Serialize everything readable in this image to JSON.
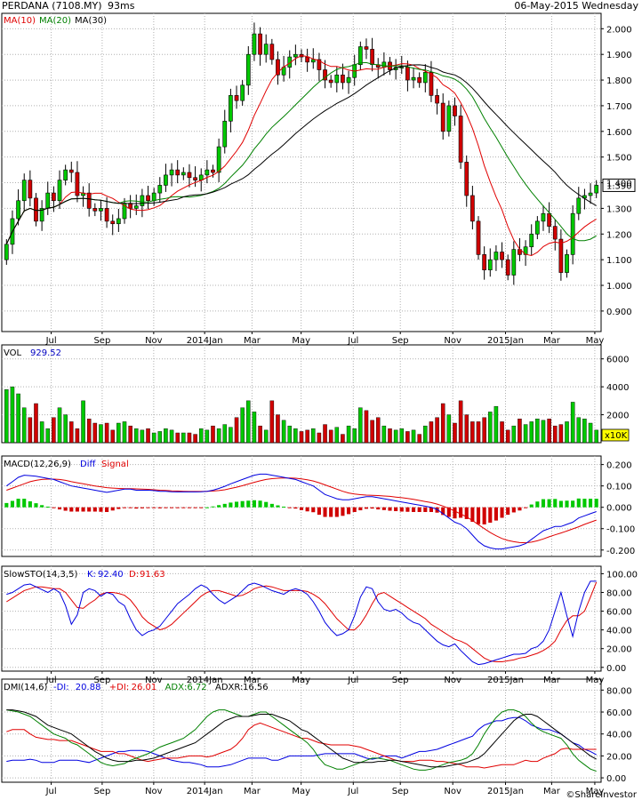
{
  "header": {
    "title": "PERDANA (7108.MY)",
    "latency": "93ms",
    "date": "06-May-2015 Wednesday"
  },
  "footer": {
    "copyright": "©ShareInvestor"
  },
  "colors": {
    "up": "#00c800",
    "down": "#d00000",
    "ma10": "#e00000",
    "ma20": "#008000",
    "ma30": "#000000",
    "diff": "#0000e0",
    "signal": "#e00000"
  },
  "chart_data": [
    {
      "type": "candlestick",
      "panel": "price",
      "legend": [
        {
          "name": "MA(10)",
          "color": "#e00000"
        },
        {
          "name": "MA(20)",
          "color": "#008000"
        },
        {
          "name": "MA(30)",
          "color": "#000000"
        }
      ],
      "current_value": "1.390",
      "ylim": [
        0.82,
        2.06
      ],
      "y_ticks": [
        "2.000",
        "1.900",
        "1.800",
        "1.700",
        "1.600",
        "1.500",
        "1.400",
        "1.300",
        "1.200",
        "1.100",
        "1.000",
        "0.900"
      ],
      "x_ticks": [
        "Jul",
        "Sep",
        "Nov",
        "2014Jan",
        "Mar",
        "May",
        "Jul",
        "Sep",
        "Nov",
        "2015Jan",
        "Mar",
        "May"
      ],
      "closes": [
        1.16,
        1.26,
        1.33,
        1.41,
        1.34,
        1.25,
        1.3,
        1.36,
        1.33,
        1.41,
        1.45,
        1.44,
        1.35,
        1.36,
        1.3,
        1.29,
        1.3,
        1.25,
        1.24,
        1.26,
        1.32,
        1.3,
        1.31,
        1.35,
        1.33,
        1.36,
        1.39,
        1.43,
        1.45,
        1.43,
        1.44,
        1.42,
        1.41,
        1.43,
        1.45,
        1.44,
        1.54,
        1.64,
        1.74,
        1.72,
        1.78,
        1.9,
        1.98,
        1.9,
        1.94,
        1.88,
        1.82,
        1.85,
        1.89,
        1.9,
        1.89,
        1.87,
        1.88,
        1.84,
        1.8,
        1.79,
        1.82,
        1.79,
        1.81,
        1.86,
        1.93,
        1.92,
        1.86,
        1.85,
        1.87,
        1.84,
        1.85,
        1.85,
        1.8,
        1.81,
        1.79,
        1.83,
        1.74,
        1.71,
        1.6,
        1.7,
        1.66,
        1.48,
        1.35,
        1.25,
        1.12,
        1.06,
        1.1,
        1.13,
        1.1,
        1.04,
        1.14,
        1.12,
        1.15,
        1.2,
        1.25,
        1.28,
        1.23,
        1.18,
        1.05,
        1.12,
        1.28,
        1.34,
        1.35,
        1.36,
        1.39
      ],
      "opens": [
        1.1,
        1.16,
        1.26,
        1.33,
        1.41,
        1.34,
        1.25,
        1.3,
        1.36,
        1.33,
        1.41,
        1.45,
        1.44,
        1.35,
        1.36,
        1.3,
        1.29,
        1.3,
        1.25,
        1.24,
        1.26,
        1.32,
        1.3,
        1.31,
        1.35,
        1.33,
        1.36,
        1.39,
        1.43,
        1.45,
        1.43,
        1.44,
        1.42,
        1.41,
        1.43,
        1.45,
        1.44,
        1.54,
        1.64,
        1.74,
        1.72,
        1.78,
        1.9,
        1.98,
        1.9,
        1.94,
        1.88,
        1.82,
        1.85,
        1.89,
        1.9,
        1.89,
        1.87,
        1.88,
        1.84,
        1.8,
        1.79,
        1.82,
        1.79,
        1.81,
        1.86,
        1.93,
        1.92,
        1.86,
        1.85,
        1.87,
        1.84,
        1.85,
        1.85,
        1.8,
        1.81,
        1.79,
        1.83,
        1.74,
        1.71,
        1.6,
        1.7,
        1.66,
        1.48,
        1.35,
        1.25,
        1.12,
        1.06,
        1.1,
        1.13,
        1.1,
        1.04,
        1.14,
        1.12,
        1.15,
        1.2,
        1.25,
        1.28,
        1.23,
        1.18,
        1.05,
        1.12,
        1.28,
        1.34,
        1.35,
        1.36
      ]
    },
    {
      "type": "bar",
      "panel": "volume",
      "label": "VOL",
      "value": "929.52",
      "ylim": [
        0,
        7000
      ],
      "y_ticks": [
        "6000",
        "4000",
        "2000"
      ],
      "unit_label": "x10K",
      "values": [
        3800,
        4000,
        3500,
        2500,
        1800,
        2800,
        1500,
        1000,
        1800,
        2500,
        2000,
        1500,
        1000,
        3000,
        1700,
        1400,
        1300,
        1400,
        900,
        1400,
        1500,
        1200,
        1000,
        900,
        1000,
        700,
        800,
        1000,
        900,
        700,
        700,
        700,
        600,
        1000,
        900,
        1200,
        1000,
        1300,
        1100,
        1800,
        2500,
        3000,
        2200,
        1200,
        900,
        3000,
        2000,
        1600,
        1200,
        1000,
        800,
        900,
        1000,
        700,
        1300,
        900,
        1100,
        600,
        1200,
        1000,
        2500,
        2300,
        1600,
        1800,
        1200,
        1000,
        900,
        1000,
        800,
        900,
        600,
        1200,
        1500,
        1800,
        2800,
        2000,
        1400,
        3000,
        2000,
        1500,
        1500,
        1800,
        2200,
        2600,
        1500,
        900,
        1200,
        1700,
        1300,
        1500,
        1700,
        1600,
        1700,
        1200,
        1300,
        1500,
        2900,
        1800,
        1700,
        1400,
        900
      ]
    },
    {
      "type": "bar_line",
      "panel": "macd",
      "label": "MACD(12,26,9)",
      "legend": [
        {
          "name": "Diff",
          "color": "#0000e0"
        },
        {
          "name": "Signal",
          "color": "#e00000"
        }
      ],
      "ylim": [
        -0.23,
        0.24
      ],
      "y_ticks": [
        "0.200",
        "0.100",
        "0.000",
        "-0.100",
        "-0.200"
      ],
      "diff": [
        0.1,
        0.12,
        0.14,
        0.15,
        0.148,
        0.145,
        0.14,
        0.135,
        0.13,
        0.12,
        0.11,
        0.1,
        0.095,
        0.09,
        0.085,
        0.08,
        0.075,
        0.07,
        0.075,
        0.08,
        0.085,
        0.085,
        0.08,
        0.08,
        0.08,
        0.078,
        0.075,
        0.075,
        0.073,
        0.072,
        0.072,
        0.072,
        0.072,
        0.073,
        0.075,
        0.08,
        0.088,
        0.098,
        0.11,
        0.12,
        0.13,
        0.14,
        0.15,
        0.155,
        0.155,
        0.15,
        0.145,
        0.14,
        0.135,
        0.13,
        0.12,
        0.11,
        0.1,
        0.08,
        0.06,
        0.05,
        0.04,
        0.035,
        0.035,
        0.04,
        0.045,
        0.05,
        0.05,
        0.045,
        0.04,
        0.035,
        0.03,
        0.025,
        0.02,
        0.015,
        0.01,
        0.005,
        0.0,
        -0.01,
        -0.03,
        -0.05,
        -0.07,
        -0.08,
        -0.1,
        -0.13,
        -0.16,
        -0.18,
        -0.19,
        -0.195,
        -0.195,
        -0.19,
        -0.185,
        -0.18,
        -0.17,
        -0.15,
        -0.13,
        -0.11,
        -0.1,
        -0.09,
        -0.09,
        -0.08,
        -0.07,
        -0.05,
        -0.04,
        -0.03,
        -0.02
      ],
      "signal": [
        0.08,
        0.09,
        0.1,
        0.11,
        0.12,
        0.126,
        0.13,
        0.132,
        0.132,
        0.13,
        0.126,
        0.12,
        0.115,
        0.11,
        0.105,
        0.1,
        0.096,
        0.092,
        0.09,
        0.088,
        0.087,
        0.087,
        0.086,
        0.085,
        0.084,
        0.082,
        0.08,
        0.079,
        0.077,
        0.076,
        0.075,
        0.074,
        0.074,
        0.074,
        0.075,
        0.076,
        0.078,
        0.082,
        0.088,
        0.094,
        0.101,
        0.109,
        0.117,
        0.124,
        0.13,
        0.134,
        0.136,
        0.137,
        0.137,
        0.136,
        0.133,
        0.129,
        0.123,
        0.115,
        0.105,
        0.095,
        0.085,
        0.075,
        0.067,
        0.062,
        0.059,
        0.057,
        0.056,
        0.055,
        0.053,
        0.051,
        0.048,
        0.045,
        0.041,
        0.037,
        0.032,
        0.027,
        0.022,
        0.015,
        0.006,
        -0.005,
        -0.018,
        -0.031,
        -0.045,
        -0.062,
        -0.081,
        -0.1,
        -0.118,
        -0.133,
        -0.146,
        -0.155,
        -0.161,
        -0.165,
        -0.166,
        -0.163,
        -0.157,
        -0.148,
        -0.138,
        -0.129,
        -0.12,
        -0.111,
        -0.101,
        -0.091,
        -0.08,
        -0.07,
        -0.06
      ]
    },
    {
      "type": "line",
      "panel": "stochastic",
      "label": "SlowSTO(14,3,5)",
      "legend": [
        {
          "name": "K:",
          "value": "92.40",
          "color": "#0000e0"
        },
        {
          "name": "D:",
          "value": "91.63",
          "color": "#e00000"
        }
      ],
      "ylim": [
        -4,
        108
      ],
      "y_ticks": [
        "100.00",
        "80.00",
        "60.00",
        "40.00",
        "20.00",
        "0.00"
      ],
      "k": [
        78,
        80,
        84,
        88,
        89,
        86,
        83,
        80,
        84,
        80,
        66,
        46,
        56,
        80,
        84,
        82,
        76,
        80,
        78,
        70,
        66,
        52,
        40,
        34,
        38,
        40,
        44,
        52,
        60,
        68,
        73,
        78,
        84,
        88,
        85,
        78,
        72,
        68,
        72,
        76,
        82,
        88,
        90,
        88,
        85,
        82,
        80,
        78,
        82,
        84,
        82,
        78,
        70,
        60,
        48,
        40,
        34,
        36,
        40,
        55,
        75,
        86,
        84,
        70,
        62,
        60,
        62,
        58,
        52,
        48,
        46,
        40,
        34,
        28,
        24,
        22,
        25,
        18,
        12,
        6,
        3,
        4,
        6,
        8,
        10,
        12,
        14,
        14,
        15,
        20,
        22,
        28,
        40,
        60,
        80,
        55,
        33,
        60,
        80,
        92,
        92
      ],
      "d": [
        70,
        74,
        78,
        82,
        84,
        86,
        86,
        85,
        84,
        84,
        80,
        72,
        64,
        63,
        68,
        72,
        78,
        80,
        80,
        79,
        77,
        72,
        64,
        54,
        48,
        44,
        40,
        42,
        46,
        52,
        58,
        64,
        70,
        76,
        80,
        82,
        82,
        80,
        78,
        76,
        77,
        80,
        84,
        86,
        87,
        86,
        84,
        82,
        82,
        82,
        82,
        81,
        78,
        74,
        68,
        60,
        52,
        46,
        40,
        40,
        46,
        56,
        68,
        78,
        80,
        76,
        72,
        68,
        64,
        60,
        56,
        52,
        46,
        42,
        38,
        34,
        30,
        28,
        25,
        20,
        15,
        10,
        7,
        6,
        6,
        7,
        8,
        10,
        11,
        13,
        15,
        18,
        22,
        28,
        40,
        50,
        55,
        55,
        60,
        75,
        91
      ]
    },
    {
      "type": "line",
      "panel": "dmi",
      "label": "DMI(14,6)",
      "legend": [
        {
          "name": "-DI:",
          "value": "20.88",
          "color": "#0000e0"
        },
        {
          "name": "+DI:",
          "value": "26.01",
          "color": "#e00000"
        },
        {
          "name": "ADX:",
          "value": "6.72",
          "color": "#008000"
        },
        {
          "name": "ADXR:",
          "value": "16.56",
          "color": "#000000"
        }
      ],
      "ylim": [
        -4,
        90
      ],
      "y_ticks": [
        "80.00",
        "60.00",
        "40.00",
        "20.00",
        "0.00"
      ],
      "minus_di": [
        15,
        16,
        16,
        16,
        17,
        16,
        14,
        14,
        14,
        16,
        16,
        16,
        16,
        15,
        14,
        16,
        18,
        20,
        22,
        24,
        24,
        25,
        25,
        25,
        24,
        22,
        20,
        18,
        16,
        15,
        14,
        14,
        13,
        12,
        10,
        10,
        10,
        11,
        12,
        14,
        16,
        18,
        18,
        18,
        18,
        16,
        16,
        18,
        20,
        20,
        20,
        20,
        20,
        21,
        22,
        22,
        22,
        22,
        22,
        22,
        20,
        18,
        17,
        18,
        20,
        20,
        20,
        18,
        20,
        22,
        24,
        24,
        25,
        26,
        28,
        30,
        32,
        34,
        36,
        38,
        44,
        48,
        50,
        52,
        52,
        54,
        55,
        55,
        52,
        48,
        46,
        44,
        44,
        42,
        40,
        36,
        32,
        30,
        26,
        24,
        21
      ],
      "plus_di": [
        42,
        44,
        44,
        44,
        40,
        37,
        36,
        35,
        35,
        34,
        34,
        34,
        32,
        30,
        28,
        26,
        24,
        24,
        24,
        22,
        22,
        20,
        18,
        16,
        15,
        16,
        17,
        18,
        18,
        18,
        19,
        20,
        20,
        20,
        19,
        20,
        22,
        24,
        26,
        30,
        36,
        44,
        48,
        50,
        48,
        46,
        44,
        42,
        40,
        38,
        36,
        36,
        34,
        32,
        31,
        30,
        30,
        30,
        30,
        29,
        28,
        26,
        24,
        22,
        20,
        18,
        16,
        15,
        15,
        15,
        16,
        16,
        16,
        15,
        15,
        14,
        13,
        12,
        10,
        10,
        10,
        9,
        10,
        11,
        12,
        12,
        12,
        14,
        16,
        15,
        15,
        18,
        20,
        22,
        26,
        27,
        26,
        26,
        26,
        26,
        26
      ],
      "adx": [
        62,
        61,
        60,
        58,
        56,
        52,
        48,
        44,
        40,
        38,
        36,
        32,
        30,
        26,
        22,
        18,
        14,
        12,
        11,
        12,
        13,
        16,
        18,
        20,
        22,
        25,
        28,
        30,
        32,
        34,
        36,
        40,
        44,
        50,
        56,
        60,
        62,
        62,
        60,
        58,
        56,
        56,
        58,
        60,
        60,
        56,
        52,
        48,
        44,
        40,
        36,
        32,
        26,
        18,
        12,
        10,
        8,
        8,
        10,
        12,
        14,
        16,
        18,
        18,
        17,
        16,
        14,
        12,
        10,
        8,
        7,
        7,
        8,
        10,
        12,
        14,
        15,
        16,
        18,
        22,
        30,
        40,
        48,
        55,
        60,
        62,
        62,
        60,
        56,
        50,
        45,
        42,
        40,
        38,
        36,
        30,
        22,
        16,
        12,
        8,
        6
      ],
      "adxr": [
        62,
        62,
        61,
        60,
        58,
        56,
        52,
        48,
        46,
        44,
        42,
        40,
        36,
        32,
        28,
        24,
        21,
        18,
        16,
        15,
        15,
        15,
        16,
        16,
        17,
        18,
        20,
        22,
        24,
        26,
        28,
        30,
        32,
        36,
        40,
        44,
        48,
        52,
        54,
        56,
        56,
        56,
        57,
        58,
        58,
        58,
        56,
        54,
        52,
        48,
        44,
        42,
        38,
        34,
        30,
        26,
        22,
        18,
        16,
        14,
        14,
        14,
        14,
        15,
        15,
        16,
        16,
        15,
        14,
        13,
        12,
        11,
        10,
        10,
        10,
        11,
        12,
        13,
        14,
        16,
        18,
        22,
        28,
        34,
        40,
        46,
        52,
        56,
        58,
        58,
        56,
        52,
        48,
        44,
        40,
        36,
        32,
        28,
        24,
        20,
        17
      ]
    }
  ]
}
